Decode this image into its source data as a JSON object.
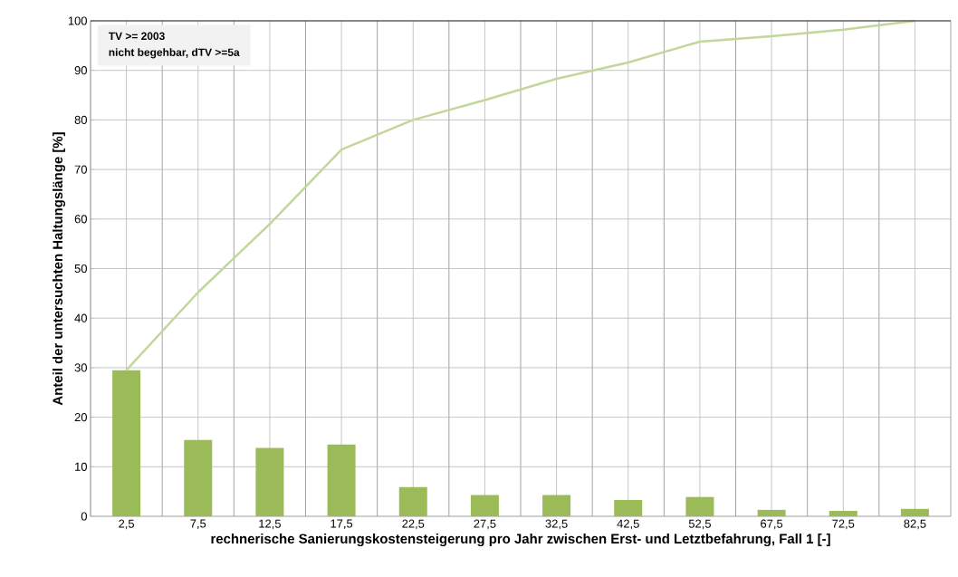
{
  "chart_data": {
    "type": "bar",
    "categories": [
      "2,5",
      "7,5",
      "12,5",
      "17,5",
      "22,5",
      "27,5",
      "32,5",
      "42,5",
      "52,5",
      "67,5",
      "72,5",
      "82,5"
    ],
    "xlabel": "rechnerische Sanierungskostensteigerung pro Jahr zwischen Erst- und Letztbefahrung, Fall 1 [-]",
    "ylabel": "Anteil der untersuchten Haltungslänge [%]",
    "series": [
      {
        "color": "#9bbb59",
        "values": [
          29.5,
          15.4,
          13.8,
          14.5,
          5.9,
          4.3,
          4.3,
          3.3,
          3.9,
          1.3,
          1.1,
          1.5
        ]
      },
      {
        "type": "line",
        "color": "#c3d69b",
        "values": [
          29.5,
          45.2,
          59.0,
          74.0,
          80.0,
          84.0,
          88.3,
          91.6,
          95.8,
          96.9,
          98.2,
          100
        ]
      }
    ],
    "ylim": [
      0,
      100
    ],
    "yticks": [
      0,
      10,
      20,
      30,
      40,
      50,
      60,
      70,
      80,
      90,
      100
    ],
    "grid": true,
    "annotations": [
      "TV >= 2003",
      "nicht begehbar, dTV >=5a"
    ]
  }
}
